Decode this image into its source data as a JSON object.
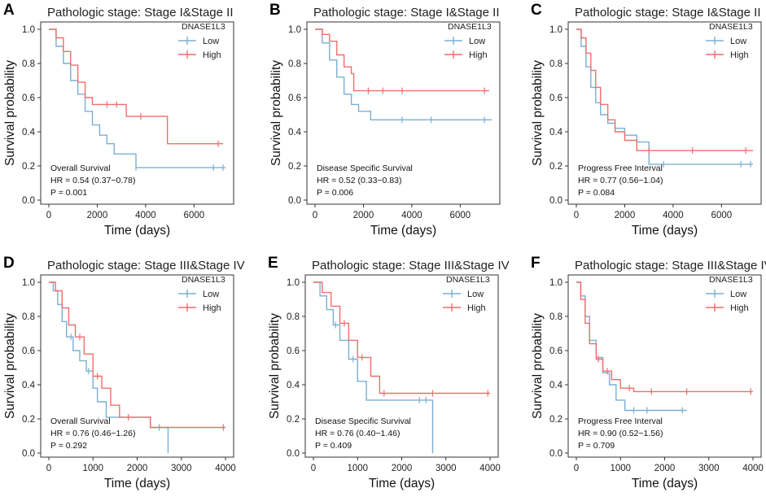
{
  "figure": {
    "colors": {
      "low": "#7BAFD4",
      "high": "#EF6F6C"
    }
  },
  "chart_data": [
    {
      "panel": "A",
      "type": "line",
      "title": "Pathologic stage: Stage I&Stage II",
      "xlabel": "Time (days)",
      "ylabel": "Survival probability",
      "xlim": [
        0,
        7300
      ],
      "ylim": [
        0,
        1
      ],
      "xticks": [
        0,
        2000,
        4000,
        6000
      ],
      "yticks": [
        0.0,
        0.2,
        0.4,
        0.6,
        0.8,
        1.0
      ],
      "legend_title": "DNASE1L3",
      "legend_position": "top-right",
      "annotation": [
        "Overall Survival",
        "HR = 0.54 (0.37−0.78)",
        "P = 0.001"
      ],
      "series": [
        {
          "name": "Low",
          "x": [
            0,
            300,
            600,
            900,
            1200,
            1500,
            1800,
            2100,
            2400,
            2700,
            3300,
            3600,
            7300
          ],
          "y": [
            1.0,
            0.9,
            0.8,
            0.7,
            0.62,
            0.52,
            0.44,
            0.38,
            0.33,
            0.27,
            0.27,
            0.19,
            0.19
          ],
          "censor_x": [
            3600,
            6800,
            7200
          ]
        },
        {
          "name": "High",
          "x": [
            0,
            300,
            600,
            900,
            1200,
            1500,
            1800,
            3200,
            4900,
            7200
          ],
          "y": [
            1.0,
            0.95,
            0.87,
            0.79,
            0.69,
            0.6,
            0.56,
            0.49,
            0.33,
            0.33
          ],
          "censor_x": [
            2400,
            2800,
            3800,
            7000
          ]
        }
      ]
    },
    {
      "panel": "B",
      "type": "line",
      "title": "Pathologic stage: Stage I&Stage II",
      "xlabel": "Time (days)",
      "ylabel": "Survival probability",
      "xlim": [
        0,
        7300
      ],
      "ylim": [
        0,
        1
      ],
      "xticks": [
        0,
        2000,
        4000,
        6000
      ],
      "yticks": [
        0.0,
        0.2,
        0.4,
        0.6,
        0.8,
        1.0
      ],
      "legend_title": "DNASE1L3",
      "legend_position": "top-right",
      "annotation": [
        "Disease Specific Survival",
        "HR = 0.52 (0.33−0.83)",
        "P = 0.006"
      ],
      "series": [
        {
          "name": "Low",
          "x": [
            0,
            300,
            600,
            900,
            1200,
            1500,
            1800,
            2300,
            7300
          ],
          "y": [
            1.0,
            0.92,
            0.82,
            0.72,
            0.62,
            0.56,
            0.52,
            0.47,
            0.47
          ],
          "censor_x": [
            3600,
            4800,
            7000
          ]
        },
        {
          "name": "High",
          "x": [
            0,
            300,
            600,
            900,
            1200,
            1500,
            1600,
            7200
          ],
          "y": [
            1.0,
            0.97,
            0.93,
            0.85,
            0.78,
            0.74,
            0.64,
            0.64
          ],
          "censor_x": [
            2200,
            2800,
            3600,
            7000
          ]
        }
      ]
    },
    {
      "panel": "C",
      "type": "line",
      "title": "Pathologic stage: Stage I&Stage II",
      "xlabel": "Time (days)",
      "ylabel": "Survival probability",
      "xlim": [
        0,
        7300
      ],
      "ylim": [
        0,
        1
      ],
      "xticks": [
        0,
        2000,
        4000,
        6000
      ],
      "yticks": [
        0.0,
        0.2,
        0.4,
        0.6,
        0.8,
        1.0
      ],
      "legend_title": "DNASE1L3",
      "legend_position": "top-right",
      "annotation": [
        "Progress Free Interval",
        "HR = 0.77 (0.56−1.04)",
        "P = 0.084"
      ],
      "series": [
        {
          "name": "Low",
          "x": [
            0,
            200,
            400,
            600,
            800,
            1000,
            1300,
            1600,
            2000,
            2500,
            3000,
            7300
          ],
          "y": [
            1.0,
            0.9,
            0.78,
            0.66,
            0.57,
            0.5,
            0.45,
            0.42,
            0.38,
            0.34,
            0.21,
            0.21
          ],
          "censor_x": [
            3600,
            6800,
            7200
          ]
        },
        {
          "name": "High",
          "x": [
            0,
            200,
            400,
            600,
            800,
            1000,
            1300,
            1600,
            2000,
            2500,
            7300
          ],
          "y": [
            1.0,
            0.95,
            0.86,
            0.76,
            0.66,
            0.56,
            0.47,
            0.4,
            0.35,
            0.29,
            0.29
          ],
          "censor_x": [
            3000,
            4800,
            7000
          ]
        }
      ]
    },
    {
      "panel": "D",
      "type": "line",
      "title": "Pathologic stage: Stage III&Stage IV",
      "xlabel": "Time (days)",
      "ylabel": "Survival probability",
      "xlim": [
        0,
        4000
      ],
      "ylim": [
        0,
        1
      ],
      "xticks": [
        0,
        1000,
        2000,
        3000,
        4000
      ],
      "yticks": [
        0.0,
        0.2,
        0.4,
        0.6,
        0.8,
        1.0
      ],
      "legend_title": "DNASE1L3",
      "legend_position": "top-right",
      "annotation": [
        "Overall Survival",
        "HR = 0.76 (0.46−1.26)",
        "P = 0.292"
      ],
      "series": [
        {
          "name": "Low",
          "x": [
            0,
            100,
            200,
            300,
            400,
            550,
            700,
            850,
            1000,
            1100,
            1300,
            2300,
            2700,
            2700
          ],
          "y": [
            1.0,
            0.95,
            0.87,
            0.77,
            0.68,
            0.6,
            0.54,
            0.48,
            0.38,
            0.3,
            0.21,
            0.15,
            0.15,
            0.0
          ],
          "censor_x": [
            500,
            900,
            2500
          ]
        },
        {
          "name": "High",
          "x": [
            0,
            150,
            300,
            450,
            600,
            800,
            1000,
            1200,
            1400,
            1600,
            2300,
            4000
          ],
          "y": [
            1.0,
            0.95,
            0.85,
            0.75,
            0.68,
            0.58,
            0.45,
            0.38,
            0.28,
            0.21,
            0.15,
            0.15
          ],
          "censor_x": [
            700,
            1100,
            1800,
            3950
          ]
        }
      ]
    },
    {
      "panel": "E",
      "type": "line",
      "title": "Pathologic stage: Stage III&Stage IV",
      "xlabel": "Time (days)",
      "ylabel": "Survival probability",
      "xlim": [
        0,
        4000
      ],
      "ylim": [
        0,
        1
      ],
      "xticks": [
        0,
        1000,
        2000,
        3000,
        4000
      ],
      "yticks": [
        0.0,
        0.2,
        0.4,
        0.6,
        0.8,
        1.0
      ],
      "legend_title": "DNASE1L3",
      "legend_position": "top-right",
      "annotation": [
        "Disease Specific Survival",
        "HR = 0.76 (0.40−1.46)",
        "P = 0.409"
      ],
      "series": [
        {
          "name": "Low",
          "x": [
            0,
            150,
            300,
            450,
            600,
            800,
            1000,
            1200,
            2700,
            2700
          ],
          "y": [
            1.0,
            0.92,
            0.84,
            0.75,
            0.66,
            0.55,
            0.42,
            0.31,
            0.31,
            0.0
          ],
          "censor_x": [
            500,
            900,
            2400,
            2550
          ]
        },
        {
          "name": "High",
          "x": [
            0,
            200,
            400,
            600,
            800,
            1000,
            1300,
            1500,
            4000
          ],
          "y": [
            1.0,
            0.94,
            0.86,
            0.76,
            0.66,
            0.56,
            0.45,
            0.35,
            0.35
          ],
          "censor_x": [
            700,
            1100,
            1600,
            2700,
            3950
          ]
        }
      ]
    },
    {
      "panel": "F",
      "type": "line",
      "title": "Pathologic stage: Stage III&Stage IV",
      "xlabel": "Time (days)",
      "ylabel": "Survival probability",
      "xlim": [
        0,
        4000
      ],
      "ylim": [
        0,
        1
      ],
      "xticks": [
        0,
        1000,
        2000,
        3000,
        4000
      ],
      "yticks": [
        0.0,
        0.2,
        0.4,
        0.6,
        0.8,
        1.0
      ],
      "legend_title": "DNASE1L3",
      "legend_position": "top-right",
      "annotation": [
        "Progress Free Interval",
        "HR = 0.90 (0.52−1.56)",
        "P = 0.709"
      ],
      "series": [
        {
          "name": "Low",
          "x": [
            0,
            100,
            200,
            300,
            450,
            600,
            750,
            900,
            1100,
            2500
          ],
          "y": [
            1.0,
            0.92,
            0.8,
            0.66,
            0.56,
            0.47,
            0.4,
            0.31,
            0.25,
            0.25
          ],
          "censor_x": [
            1300,
            1600,
            2400
          ]
        },
        {
          "name": "High",
          "x": [
            0,
            100,
            200,
            300,
            450,
            600,
            800,
            1000,
            1300,
            4000
          ],
          "y": [
            1.0,
            0.9,
            0.76,
            0.64,
            0.55,
            0.48,
            0.43,
            0.38,
            0.36,
            0.36
          ],
          "censor_x": [
            500,
            700,
            1200,
            1700,
            2500,
            3950
          ]
        }
      ]
    }
  ]
}
